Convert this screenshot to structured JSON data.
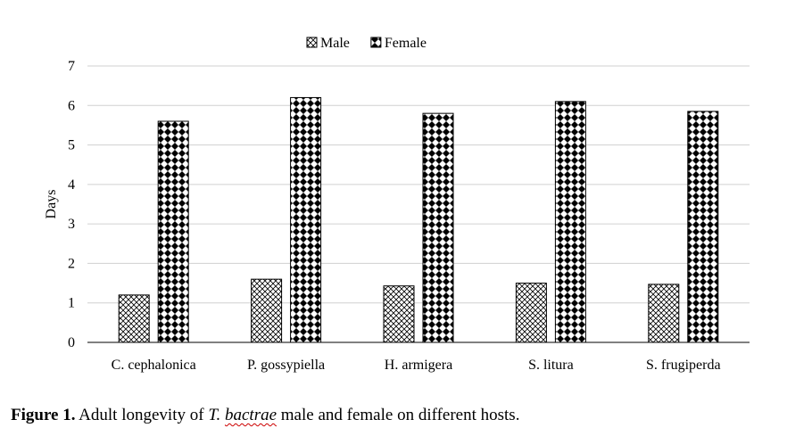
{
  "chart_data": {
    "type": "bar",
    "title": "",
    "xlabel": "",
    "ylabel": "Days",
    "ylim": [
      0,
      7
    ],
    "yticks": [
      0,
      1,
      2,
      3,
      4,
      5,
      6,
      7
    ],
    "grid": true,
    "legend_position": "top-center",
    "categories": [
      "C. cephalonica",
      "P. gossypiella",
      "H. armigera",
      "S. litura",
      "S. frugiperda"
    ],
    "series": [
      {
        "name": "Male",
        "pattern": "crosshatch",
        "values": [
          1.2,
          1.6,
          1.43,
          1.5,
          1.47
        ]
      },
      {
        "name": "Female",
        "pattern": "checkerboard-diamond",
        "values": [
          5.6,
          6.2,
          5.8,
          6.1,
          5.85
        ]
      }
    ]
  },
  "caption": {
    "label": "Figure 1.",
    "text_before": " Adult longevity of ",
    "species_genus": "T.",
    "species_epithet": "bactrae",
    "text_after": " male and female on different hosts."
  }
}
